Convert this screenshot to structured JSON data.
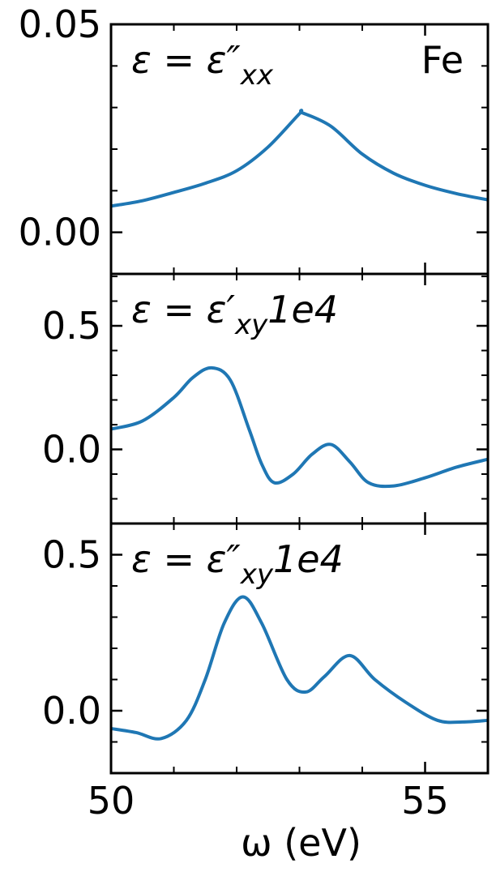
{
  "chart_data": [
    {
      "type": "line",
      "annotation": {
        "main": "ε = ε″",
        "sub": "xx"
      },
      "label": "Fe",
      "x": [
        50,
        50.5,
        51,
        51.5,
        52,
        52.5,
        53,
        53.05,
        53.5,
        54,
        54.5,
        55,
        55.5,
        56
      ],
      "series": [
        {
          "color": "#1f77b4",
          "values": [
            0.0063,
            0.0076,
            0.0096,
            0.0118,
            0.0148,
            0.0205,
            0.0285,
            0.0287,
            0.0255,
            0.0188,
            0.0142,
            0.0113,
            0.0093,
            0.0078
          ]
        }
      ],
      "xlim": [
        50,
        56
      ],
      "xticks": [
        50,
        55
      ],
      "xminorticks": [
        51,
        52,
        53,
        54,
        56
      ],
      "ylim": [
        -0.01,
        0.05
      ],
      "yticks": [
        {
          "value": 0,
          "label": "0.00"
        },
        {
          "value": 0.05,
          "label": "0.05"
        }
      ],
      "yminorticks": [
        -0.01,
        0.01,
        0.02,
        0.03,
        0.04
      ]
    },
    {
      "type": "line",
      "annotation": {
        "main": "ε = ε′",
        "sub": "xy",
        "suffix": "1e4"
      },
      "x": [
        50,
        50.5,
        51,
        51.3,
        51.6,
        51.9,
        52.2,
        52.4,
        52.6,
        52.9,
        53.2,
        53.5,
        53.8,
        54.1,
        54.5,
        55,
        55.5,
        56
      ],
      "series": [
        {
          "color": "#1f77b4",
          "values": [
            0.082,
            0.115,
            0.21,
            0.29,
            0.33,
            0.28,
            0.08,
            -0.06,
            -0.135,
            -0.1,
            -0.02,
            0.02,
            -0.05,
            -0.135,
            -0.148,
            -0.115,
            -0.072,
            -0.04
          ]
        }
      ],
      "xlim": [
        50,
        56
      ],
      "xticks": [
        50,
        55
      ],
      "xminorticks": [
        51,
        52,
        53,
        54,
        56
      ],
      "ylim": [
        -0.3,
        0.71
      ],
      "yticks": [
        {
          "value": 0,
          "label": "0.0"
        },
        {
          "value": 0.5,
          "label": "0.5"
        }
      ],
      "yminorticks": [
        -0.2,
        -0.1,
        0.1,
        0.2,
        0.3,
        0.4,
        0.6,
        0.7
      ]
    },
    {
      "type": "line",
      "annotation": {
        "main": "ε = ε″",
        "sub": "xy",
        "suffix": "1e4"
      },
      "xlabel": "ω (eV)",
      "x": [
        50,
        50.4,
        50.8,
        51.2,
        51.5,
        51.8,
        52.1,
        52.4,
        52.8,
        53.1,
        53.4,
        53.8,
        54.2,
        54.7,
        55.2,
        55.6,
        56
      ],
      "series": [
        {
          "color": "#1f77b4",
          "values": [
            -0.057,
            -0.07,
            -0.089,
            -0.031,
            0.1,
            0.28,
            0.365,
            0.28,
            0.1,
            0.06,
            0.11,
            0.177,
            0.1,
            0.026,
            -0.031,
            -0.036,
            -0.031
          ]
        }
      ],
      "xlim": [
        50,
        56
      ],
      "xticks": [
        50,
        55
      ],
      "xminorticks": [
        51,
        52,
        53,
        54,
        56
      ],
      "ylim": [
        -0.2,
        0.6
      ],
      "yticks": [
        {
          "value": 0,
          "label": "0.0"
        },
        {
          "value": 0.5,
          "label": "0.5"
        }
      ],
      "yminorticks": [
        -0.1,
        0.1,
        0.2,
        0.3,
        0.4,
        0.6
      ]
    }
  ]
}
